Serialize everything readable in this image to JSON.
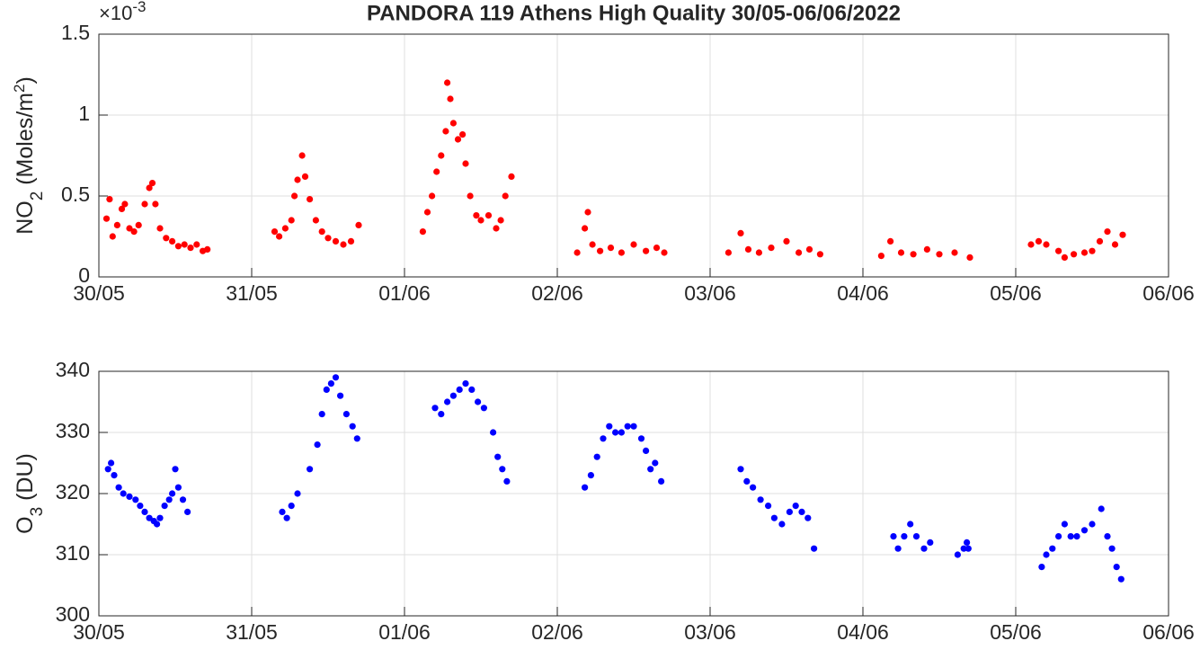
{
  "chart_data": [
    {
      "type": "scatter",
      "title": "PANDORA 119 Athens High Quality 30/05-06/06/2022",
      "ylabel": {
        "parts": [
          "NO",
          "2",
          " (Moles/m",
          "2",
          ")"
        ],
        "styles": [
          "normal",
          "sub",
          "normal",
          "super",
          "normal"
        ]
      },
      "y_multiplier": {
        "base": "×10",
        "exponent": "-3"
      },
      "color": "#ff0000",
      "grid": true,
      "xlim": [
        0,
        7
      ],
      "xticks": [
        {
          "value": 0,
          "label": "30/05"
        },
        {
          "value": 1,
          "label": "31/05"
        },
        {
          "value": 2,
          "label": "01/06"
        },
        {
          "value": 3,
          "label": "02/06"
        },
        {
          "value": 4,
          "label": "03/06"
        },
        {
          "value": 5,
          "label": "04/06"
        },
        {
          "value": 6,
          "label": "05/06"
        },
        {
          "value": 7,
          "label": "06/06"
        }
      ],
      "ylim": [
        0,
        1.5
      ],
      "yticks": [
        0,
        0.5,
        1,
        1.5
      ],
      "x": [
        0.05,
        0.07,
        0.09,
        0.12,
        0.15,
        0.17,
        0.2,
        0.23,
        0.26,
        0.3,
        0.33,
        0.35,
        0.37,
        0.4,
        0.44,
        0.48,
        0.52,
        0.56,
        0.6,
        0.64,
        0.68,
        0.71,
        1.15,
        1.18,
        1.22,
        1.26,
        1.28,
        1.3,
        1.33,
        1.35,
        1.38,
        1.42,
        1.46,
        1.5,
        1.55,
        1.6,
        1.65,
        1.7,
        2.12,
        2.15,
        2.18,
        2.21,
        2.24,
        2.27,
        2.28,
        2.3,
        2.32,
        2.35,
        2.38,
        2.4,
        2.43,
        2.47,
        2.5,
        2.55,
        2.6,
        2.63,
        2.66,
        2.7,
        3.13,
        3.18,
        3.2,
        3.23,
        3.28,
        3.35,
        3.42,
        3.5,
        3.58,
        3.65,
        3.7,
        4.12,
        4.2,
        4.25,
        4.32,
        4.4,
        4.5,
        4.58,
        4.65,
        4.72,
        5.12,
        5.18,
        5.25,
        5.33,
        5.42,
        5.5,
        5.6,
        5.7,
        6.1,
        6.15,
        6.2,
        6.28,
        6.32,
        6.38,
        6.45,
        6.5,
        6.55,
        6.6,
        6.65,
        6.7
      ],
      "values": [
        0.36,
        0.48,
        0.25,
        0.32,
        0.42,
        0.45,
        0.3,
        0.28,
        0.32,
        0.45,
        0.55,
        0.58,
        0.45,
        0.3,
        0.24,
        0.22,
        0.19,
        0.2,
        0.18,
        0.2,
        0.16,
        0.17,
        0.28,
        0.25,
        0.3,
        0.35,
        0.5,
        0.6,
        0.75,
        0.62,
        0.48,
        0.35,
        0.28,
        0.24,
        0.22,
        0.2,
        0.22,
        0.32,
        0.28,
        0.4,
        0.5,
        0.65,
        0.75,
        0.9,
        1.2,
        1.1,
        0.95,
        0.85,
        0.88,
        0.7,
        0.5,
        0.38,
        0.35,
        0.38,
        0.3,
        0.35,
        0.5,
        0.62,
        0.15,
        0.3,
        0.4,
        0.2,
        0.16,
        0.18,
        0.15,
        0.2,
        0.16,
        0.18,
        0.15,
        0.15,
        0.27,
        0.17,
        0.15,
        0.18,
        0.22,
        0.15,
        0.17,
        0.14,
        0.13,
        0.22,
        0.15,
        0.14,
        0.17,
        0.14,
        0.15,
        0.12,
        0.2,
        0.22,
        0.2,
        0.16,
        0.12,
        0.14,
        0.15,
        0.16,
        0.22,
        0.28,
        0.2,
        0.26
      ]
    },
    {
      "type": "scatter",
      "ylabel": {
        "parts": [
          "O",
          "3",
          " (DU)"
        ],
        "styles": [
          "normal",
          "sub",
          "normal"
        ]
      },
      "color": "#0000ff",
      "grid": true,
      "xlim": [
        0,
        7
      ],
      "xticks": [
        {
          "value": 0,
          "label": "30/05"
        },
        {
          "value": 1,
          "label": "31/05"
        },
        {
          "value": 2,
          "label": "01/06"
        },
        {
          "value": 3,
          "label": "02/06"
        },
        {
          "value": 4,
          "label": "03/06"
        },
        {
          "value": 5,
          "label": "04/06"
        },
        {
          "value": 6,
          "label": "05/06"
        },
        {
          "value": 7,
          "label": "06/06"
        }
      ],
      "ylim": [
        300,
        340
      ],
      "yticks": [
        300,
        310,
        320,
        330,
        340
      ],
      "x": [
        0.06,
        0.08,
        0.1,
        0.13,
        0.16,
        0.2,
        0.24,
        0.27,
        0.3,
        0.33,
        0.36,
        0.38,
        0.4,
        0.43,
        0.46,
        0.48,
        0.5,
        0.52,
        0.55,
        0.58,
        1.2,
        1.23,
        1.26,
        1.3,
        1.38,
        1.43,
        1.46,
        1.49,
        1.52,
        1.55,
        1.58,
        1.62,
        1.66,
        1.69,
        2.2,
        2.24,
        2.28,
        2.32,
        2.36,
        2.4,
        2.44,
        2.48,
        2.52,
        2.58,
        2.61,
        2.64,
        2.67,
        3.18,
        3.22,
        3.26,
        3.3,
        3.34,
        3.38,
        3.42,
        3.46,
        3.5,
        3.55,
        3.58,
        3.61,
        3.64,
        3.68,
        4.2,
        4.24,
        4.28,
        4.33,
        4.38,
        4.42,
        4.47,
        4.52,
        4.56,
        4.6,
        4.64,
        4.68,
        5.2,
        5.23,
        5.27,
        5.31,
        5.35,
        5.4,
        5.44,
        5.62,
        5.66,
        5.68,
        5.69,
        6.17,
        6.2,
        6.24,
        6.28,
        6.32,
        6.36,
        6.4,
        6.45,
        6.5,
        6.56,
        6.6,
        6.63,
        6.66,
        6.69
      ],
      "values": [
        324,
        325,
        323,
        321,
        320,
        319.5,
        319,
        318,
        317,
        316,
        315.5,
        315,
        316,
        318,
        319,
        320,
        324,
        321,
        319,
        317,
        317,
        316,
        318,
        320,
        324,
        328,
        333,
        337,
        338,
        339,
        336,
        333,
        331,
        329,
        334,
        333,
        335,
        336,
        337,
        338,
        337,
        335,
        334,
        330,
        326,
        324,
        322,
        321,
        323,
        326,
        329,
        331,
        330,
        330,
        331,
        331,
        329,
        327,
        324,
        325,
        322,
        324,
        322,
        321,
        319,
        318,
        316,
        315,
        317,
        318,
        317,
        316,
        311,
        313,
        311,
        313,
        315,
        313,
        311,
        312,
        310,
        311,
        312,
        311,
        308,
        310,
        311,
        313,
        315,
        313,
        313,
        314,
        315,
        317.5,
        313,
        311,
        308,
        306
      ]
    }
  ]
}
